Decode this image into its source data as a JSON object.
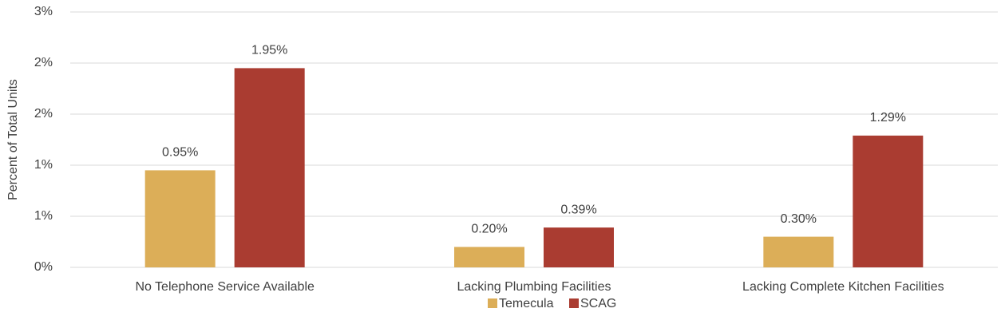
{
  "chart_data": {
    "type": "bar",
    "y_label": "Percent of Total Units",
    "categories": [
      "No Telephone Service Available",
      "Lacking Plumbing Facilities",
      "Lacking Complete Kitchen Facilities"
    ],
    "series": [
      {
        "name": "Temecula",
        "color": "#dcae58",
        "values": [
          0.95,
          0.2,
          0.3
        ],
        "value_labels": [
          "0.95%",
          "0.20%",
          "0.30%"
        ]
      },
      {
        "name": "SCAG",
        "color": "#aa3c31",
        "values": [
          1.95,
          0.39,
          1.29
        ],
        "value_labels": [
          "1.95%",
          "0.39%",
          "1.29%"
        ]
      }
    ],
    "ylim": [
      0,
      2.5
    ],
    "yticks": [
      {
        "value": 0,
        "label": "0%"
      },
      {
        "value": 0.5,
        "label": "1%"
      },
      {
        "value": 1,
        "label": "1%"
      },
      {
        "value": 1.5,
        "label": "2%"
      },
      {
        "value": 2,
        "label": "2%"
      },
      {
        "value": 2.5,
        "label": "3%"
      }
    ],
    "grid": true,
    "legend": "bottom"
  }
}
